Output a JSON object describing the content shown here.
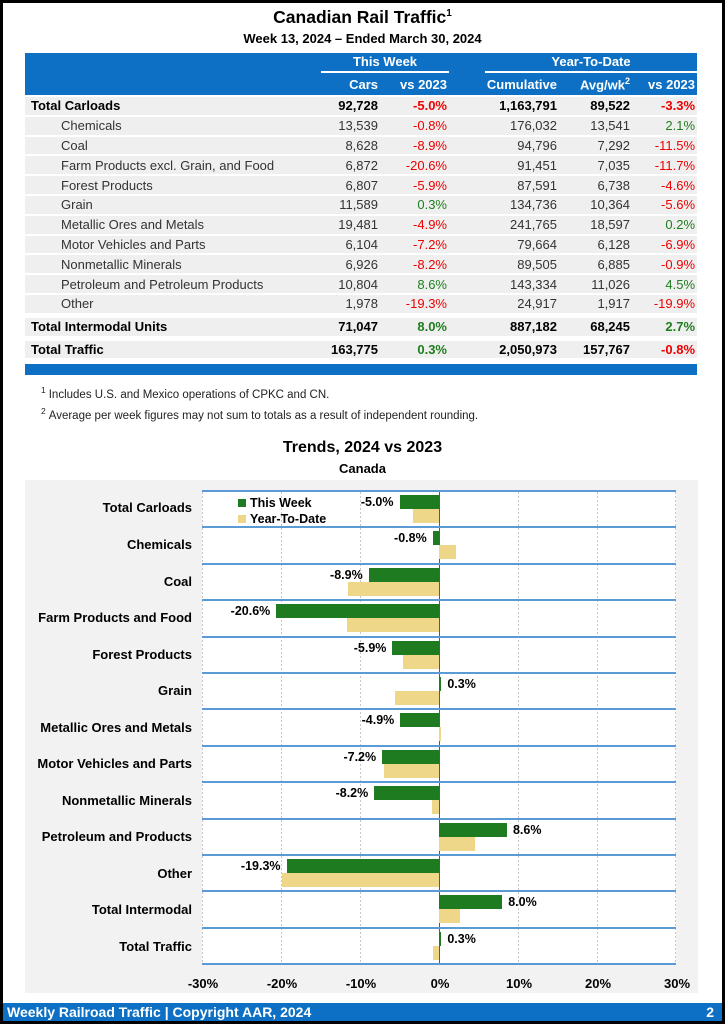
{
  "page": {
    "title": "Canadian Rail Traffic",
    "title_footnote_ref": "1",
    "subtitle": "Week 13, 2024 – Ended March 30, 2024",
    "footer": {
      "left": "Weekly Railroad Traffic | Copyright AAR, 2024",
      "page_number": "2"
    }
  },
  "table": {
    "group_headers": {
      "this_week": "This Week",
      "year_to_date": "Year-To-Date"
    },
    "columns": {
      "cars": "Cars",
      "cars_vs": "vs 2023",
      "cumulative": "Cumulative",
      "avg_wk": "Avg/wk",
      "avg_wk_footnote_ref": "2",
      "ytd_vs": "vs 2023"
    },
    "rows": [
      {
        "label": "Total Carloads",
        "bold": true,
        "indent": false,
        "cars": "92,728",
        "cars_vs": "-5.0%",
        "cumulative": "1,163,791",
        "avg_wk": "89,522",
        "ytd_vs": "-3.3%"
      },
      {
        "label": "Chemicals",
        "bold": false,
        "indent": true,
        "cars": "13,539",
        "cars_vs": "-0.8%",
        "cumulative": "176,032",
        "avg_wk": "13,541",
        "ytd_vs": "2.1%"
      },
      {
        "label": "Coal",
        "bold": false,
        "indent": true,
        "cars": "8,628",
        "cars_vs": "-8.9%",
        "cumulative": "94,796",
        "avg_wk": "7,292",
        "ytd_vs": "-11.5%"
      },
      {
        "label": "Farm Products excl. Grain, and Food",
        "bold": false,
        "indent": true,
        "cars": "6,872",
        "cars_vs": "-20.6%",
        "cumulative": "91,451",
        "avg_wk": "7,035",
        "ytd_vs": "-11.7%"
      },
      {
        "label": "Forest Products",
        "bold": false,
        "indent": true,
        "cars": "6,807",
        "cars_vs": "-5.9%",
        "cumulative": "87,591",
        "avg_wk": "6,738",
        "ytd_vs": "-4.6%"
      },
      {
        "label": "Grain",
        "bold": false,
        "indent": true,
        "cars": "11,589",
        "cars_vs": "0.3%",
        "cumulative": "134,736",
        "avg_wk": "10,364",
        "ytd_vs": "-5.6%"
      },
      {
        "label": "Metallic Ores and Metals",
        "bold": false,
        "indent": true,
        "cars": "19,481",
        "cars_vs": "-4.9%",
        "cumulative": "241,765",
        "avg_wk": "18,597",
        "ytd_vs": "0.2%"
      },
      {
        "label": "Motor Vehicles and Parts",
        "bold": false,
        "indent": true,
        "cars": "6,104",
        "cars_vs": "-7.2%",
        "cumulative": "79,664",
        "avg_wk": "6,128",
        "ytd_vs": "-6.9%"
      },
      {
        "label": "Nonmetallic Minerals",
        "bold": false,
        "indent": true,
        "cars": "6,926",
        "cars_vs": "-8.2%",
        "cumulative": "89,505",
        "avg_wk": "6,885",
        "ytd_vs": "-0.9%"
      },
      {
        "label": "Petroleum and Petroleum Products",
        "bold": false,
        "indent": true,
        "cars": "10,804",
        "cars_vs": "8.6%",
        "cumulative": "143,334",
        "avg_wk": "11,026",
        "ytd_vs": "4.5%"
      },
      {
        "label": "Other",
        "bold": false,
        "indent": true,
        "cars": "1,978",
        "cars_vs": "-19.3%",
        "cumulative": "24,917",
        "avg_wk": "1,917",
        "ytd_vs": "-19.9%"
      },
      {
        "label": "Total Intermodal Units",
        "bold": true,
        "indent": false,
        "cars": "71,047",
        "cars_vs": "8.0%",
        "cumulative": "887,182",
        "avg_wk": "68,245",
        "ytd_vs": "2.7%"
      },
      {
        "label": "Total Traffic",
        "bold": true,
        "indent": false,
        "cars": "163,775",
        "cars_vs": "0.3%",
        "cumulative": "2,050,973",
        "avg_wk": "157,767",
        "ytd_vs": "-0.8%"
      }
    ]
  },
  "footnotes": [
    {
      "ref": "1",
      "text": "Includes U.S. and Mexico operations of CPKC and CN."
    },
    {
      "ref": "2",
      "text": "Average per week figures may not sum to totals as a result of independent rounding."
    }
  ],
  "chart_data": {
    "type": "bar",
    "orientation": "horizontal",
    "title": "Trends, 2024 vs 2023",
    "subtitle": "Canada",
    "categories": [
      "Total Carloads",
      "Chemicals",
      "Coal",
      "Farm Products and Food",
      "Forest Products",
      "Grain",
      "Metallic Ores and Metals",
      "Motor Vehicles and Parts",
      "Nonmetallic Minerals",
      "Petroleum and Products",
      "Other",
      "Total Intermodal",
      "Total Traffic"
    ],
    "series": [
      {
        "name": "This Week",
        "color": "#1f7b1f",
        "values": [
          -5.0,
          -0.8,
          -8.9,
          -20.6,
          -5.9,
          0.3,
          -4.9,
          -7.2,
          -8.2,
          8.6,
          -19.3,
          8.0,
          0.3
        ]
      },
      {
        "name": "Year-To-Date",
        "color": "#efd78a",
        "values": [
          -3.3,
          2.1,
          -11.5,
          -11.7,
          -4.6,
          -5.6,
          0.2,
          -6.9,
          -0.9,
          4.5,
          -19.9,
          2.7,
          -0.8
        ]
      }
    ],
    "bar_labels": [
      "-5.0%",
      "-0.8%",
      "-8.9%",
      "-20.6%",
      "-5.9%",
      "0.3%",
      "-4.9%",
      "-7.2%",
      "-8.2%",
      "8.6%",
      "-19.3%",
      "8.0%",
      "0.3%"
    ],
    "xlim": [
      -30,
      30
    ],
    "x_ticks": [
      "-30%",
      "-20%",
      "-10%",
      "0%",
      "10%",
      "20%",
      "30%"
    ],
    "grid": "vertical-dashed",
    "legend_position": "top-left"
  }
}
